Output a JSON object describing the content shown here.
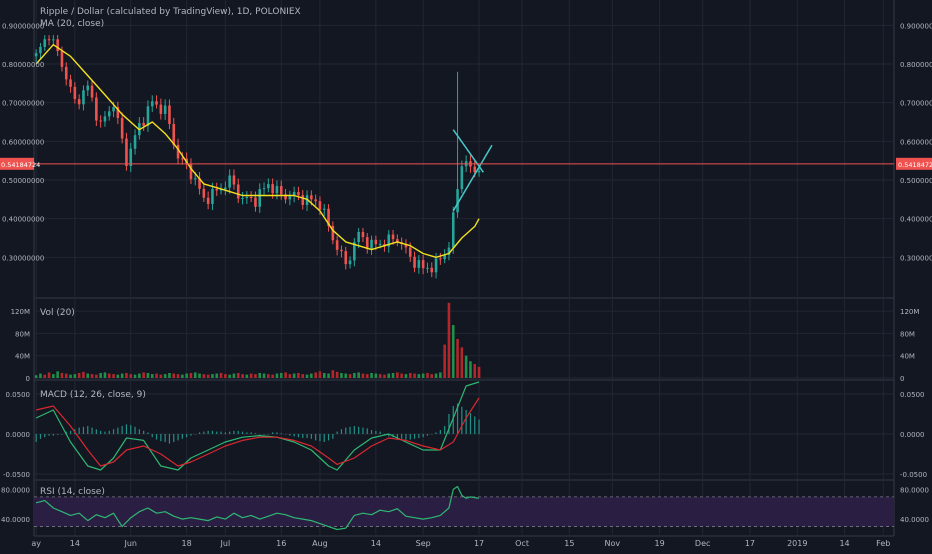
{
  "header": {
    "title": "Ripple / Dollar (calculated by TradingView), 1D, POLONIEX",
    "ma_label": "MA (20, close)"
  },
  "colors": {
    "background": "#131722",
    "grid": "#232733",
    "text": "#b2b5be",
    "up": "#26a69a",
    "down": "#ef5350",
    "vol_up": "#1f8f4a",
    "vol_down": "#b3272b",
    "ma": "#f2e11f",
    "macd": "#2eb872",
    "signal": "#d8282f",
    "rsi": "#2eb872",
    "rsi_band": "#2a1e43",
    "price_line": "#ef5350",
    "trend": "#45c8c8"
  },
  "chart_data": [
    {
      "name": "price",
      "type": "candlestick",
      "y_ticks": [
        "0.90000000",
        "0.80000000",
        "0.70000000",
        "0.60000000",
        "0.50000000",
        "0.40000000",
        "0.30000000"
      ],
      "ylim": [
        0.2,
        0.95
      ],
      "last_price_label": "0.54184724",
      "last_price": 0.54184724,
      "ma_label": "MA (20, close)",
      "close_path": [
        [
          0,
          0.82
        ],
        [
          3,
          0.88
        ],
        [
          6,
          0.8
        ],
        [
          9,
          0.7
        ],
        [
          12,
          0.74
        ],
        [
          15,
          0.64
        ],
        [
          18,
          0.7
        ],
        [
          21,
          0.55
        ],
        [
          24,
          0.64
        ],
        [
          27,
          0.7
        ],
        [
          30,
          0.68
        ],
        [
          33,
          0.56
        ],
        [
          36,
          0.52
        ],
        [
          39,
          0.45
        ],
        [
          42,
          0.47
        ],
        [
          45,
          0.5
        ],
        [
          48,
          0.45
        ],
        [
          51,
          0.45
        ],
        [
          54,
          0.49
        ],
        [
          57,
          0.46
        ],
        [
          60,
          0.46
        ],
        [
          63,
          0.45
        ],
        [
          66,
          0.44
        ],
        [
          69,
          0.35
        ],
        [
          72,
          0.28
        ],
        [
          75,
          0.36
        ],
        [
          78,
          0.33
        ],
        [
          81,
          0.34
        ],
        [
          84,
          0.35
        ],
        [
          87,
          0.3
        ],
        [
          90,
          0.27
        ],
        [
          93,
          0.28
        ],
        [
          96,
          0.33
        ],
        [
          99,
          0.55
        ],
        [
          102,
          0.52
        ],
        [
          103,
          0.54
        ]
      ],
      "ma_points": [
        [
          0,
          0.8
        ],
        [
          4,
          0.85
        ],
        [
          8,
          0.82
        ],
        [
          12,
          0.77
        ],
        [
          16,
          0.72
        ],
        [
          20,
          0.67
        ],
        [
          24,
          0.63
        ],
        [
          27,
          0.65
        ],
        [
          30,
          0.62
        ],
        [
          33,
          0.58
        ],
        [
          36,
          0.53
        ],
        [
          39,
          0.49
        ],
        [
          42,
          0.48
        ],
        [
          45,
          0.47
        ],
        [
          48,
          0.46
        ],
        [
          51,
          0.46
        ],
        [
          54,
          0.46
        ],
        [
          57,
          0.46
        ],
        [
          60,
          0.46
        ],
        [
          63,
          0.45
        ],
        [
          66,
          0.42
        ],
        [
          69,
          0.37
        ],
        [
          72,
          0.34
        ],
        [
          75,
          0.33
        ],
        [
          78,
          0.32
        ],
        [
          81,
          0.33
        ],
        [
          84,
          0.34
        ],
        [
          87,
          0.33
        ],
        [
          90,
          0.31
        ],
        [
          93,
          0.3
        ],
        [
          96,
          0.31
        ],
        [
          99,
          0.35
        ],
        [
          102,
          0.38
        ],
        [
          103,
          0.4
        ]
      ],
      "spike": {
        "day": 98,
        "low": 0.42,
        "high": 0.78
      },
      "trendlines": [
        {
          "from": [
            97,
            0.63
          ],
          "to": [
            104,
            0.52
          ]
        },
        {
          "from": [
            97,
            0.42
          ],
          "to": [
            106,
            0.59
          ]
        }
      ]
    },
    {
      "name": "volume",
      "type": "bar",
      "label": "Vol (20)",
      "y_ticks": [
        "120M",
        "80M",
        "40M",
        "0"
      ],
      "ylim": [
        0,
        140
      ],
      "series": [
        {
          "name": "volume",
          "values": [
            5,
            8,
            6,
            10,
            7,
            12,
            9,
            8,
            6,
            7,
            9,
            11,
            8,
            7,
            6,
            9,
            10,
            8,
            7,
            6,
            8,
            9,
            7,
            6,
            8,
            10,
            9,
            7,
            8,
            6,
            7,
            9,
            8,
            7,
            6,
            8,
            9,
            10,
            8,
            7,
            6,
            7,
            8,
            9,
            7,
            6,
            8,
            9,
            7,
            6,
            8,
            7,
            9,
            8,
            7,
            6,
            8,
            9,
            10,
            7,
            8,
            9,
            7,
            6,
            8,
            10,
            12,
            9,
            8,
            14,
            11,
            9,
            8,
            7,
            9,
            10,
            8,
            7,
            9,
            8,
            7,
            6,
            8,
            9,
            10,
            8,
            7,
            9,
            8,
            7,
            8,
            9,
            7,
            8,
            10,
            60,
            135,
            95,
            70,
            55,
            40,
            30,
            25,
            20
          ]
        }
      ]
    },
    {
      "name": "macd",
      "type": "line",
      "label": "MACD (12, 26, close, 9)",
      "y_ticks": [
        "0.0500",
        "0.0000",
        "-0.0500"
      ],
      "ylim": [
        -0.055,
        0.065
      ],
      "series": [
        {
          "name": "macd",
          "points": [
            [
              0,
              0.02
            ],
            [
              4,
              0.03
            ],
            [
              8,
              -0.01
            ],
            [
              12,
              -0.04
            ],
            [
              15,
              -0.045
            ],
            [
              18,
              -0.03
            ],
            [
              21,
              -0.005
            ],
            [
              25,
              -0.008
            ],
            [
              29,
              -0.04
            ],
            [
              33,
              -0.045
            ],
            [
              36,
              -0.03
            ],
            [
              40,
              -0.02
            ],
            [
              44,
              -0.01
            ],
            [
              48,
              -0.004
            ],
            [
              52,
              -0.002
            ],
            [
              56,
              -0.004
            ],
            [
              60,
              -0.01
            ],
            [
              64,
              -0.02
            ],
            [
              68,
              -0.04
            ],
            [
              70,
              -0.045
            ],
            [
              74,
              -0.02
            ],
            [
              78,
              -0.005
            ],
            [
              82,
              0.0
            ],
            [
              86,
              -0.01
            ],
            [
              90,
              -0.02
            ],
            [
              94,
              -0.02
            ],
            [
              97,
              0.02
            ],
            [
              100,
              0.06
            ],
            [
              103,
              0.065
            ]
          ]
        },
        {
          "name": "signal",
          "points": [
            [
              0,
              0.03
            ],
            [
              4,
              0.035
            ],
            [
              8,
              0.01
            ],
            [
              12,
              -0.02
            ],
            [
              15,
              -0.04
            ],
            [
              18,
              -0.035
            ],
            [
              21,
              -0.02
            ],
            [
              25,
              -0.015
            ],
            [
              29,
              -0.025
            ],
            [
              33,
              -0.04
            ],
            [
              36,
              -0.035
            ],
            [
              40,
              -0.025
            ],
            [
              44,
              -0.015
            ],
            [
              48,
              -0.008
            ],
            [
              52,
              -0.004
            ],
            [
              56,
              -0.004
            ],
            [
              60,
              -0.008
            ],
            [
              64,
              -0.015
            ],
            [
              68,
              -0.03
            ],
            [
              70,
              -0.038
            ],
            [
              74,
              -0.03
            ],
            [
              78,
              -0.015
            ],
            [
              82,
              -0.005
            ],
            [
              86,
              -0.008
            ],
            [
              90,
              -0.015
            ],
            [
              94,
              -0.02
            ],
            [
              97,
              -0.01
            ],
            [
              100,
              0.02
            ],
            [
              103,
              0.045
            ]
          ]
        },
        {
          "name": "histogram",
          "values": [
            -0.01,
            -0.006,
            -0.004,
            -0.002,
            -0.002,
            -0.001,
            0.0,
            0.003,
            0.004,
            0.006,
            0.008,
            0.009,
            0.01,
            0.008,
            0.006,
            0.004,
            0.003,
            0.004,
            0.006,
            0.008,
            0.01,
            0.012,
            0.011,
            0.009,
            0.006,
            0.004,
            0.002,
            -0.004,
            -0.007,
            -0.009,
            -0.01,
            -0.012,
            -0.01,
            -0.008,
            -0.006,
            -0.004,
            -0.002,
            0.0,
            0.002,
            0.003,
            0.004,
            0.004,
            0.003,
            0.003,
            0.002,
            0.003,
            0.004,
            0.004,
            0.003,
            0.002,
            0.002,
            0.001,
            0.0,
            0.0,
            0.0,
            0.002,
            0.002,
            0.001,
            0.0,
            -0.002,
            -0.003,
            -0.004,
            -0.005,
            -0.005,
            -0.006,
            -0.008,
            -0.009,
            -0.01,
            -0.008,
            -0.006,
            0.003,
            0.006,
            0.008,
            0.009,
            0.01,
            0.009,
            0.008,
            0.007,
            0.005,
            0.004,
            0.003,
            0.0,
            -0.003,
            -0.004,
            -0.005,
            -0.006,
            -0.007,
            -0.007,
            -0.006,
            -0.005,
            -0.004,
            -0.002,
            0.0,
            0.002,
            0.005,
            0.01,
            0.025,
            0.035,
            0.038,
            0.034,
            0.03,
            0.026,
            0.022,
            0.018
          ]
        }
      ]
    },
    {
      "name": "rsi",
      "type": "line",
      "label": "RSI (14, close)",
      "y_ticks": [
        "80.0000",
        "40.0000"
      ],
      "ylim": [
        20,
        90
      ],
      "band": [
        30,
        70
      ],
      "series": [
        {
          "name": "rsi",
          "points": [
            [
              0,
              62
            ],
            [
              2,
              65
            ],
            [
              4,
              55
            ],
            [
              6,
              50
            ],
            [
              8,
              45
            ],
            [
              10,
              48
            ],
            [
              12,
              38
            ],
            [
              14,
              46
            ],
            [
              16,
              42
            ],
            [
              18,
              48
            ],
            [
              20,
              30
            ],
            [
              22,
              42
            ],
            [
              24,
              50
            ],
            [
              26,
              55
            ],
            [
              28,
              48
            ],
            [
              30,
              50
            ],
            [
              32,
              44
            ],
            [
              34,
              40
            ],
            [
              36,
              42
            ],
            [
              38,
              40
            ],
            [
              40,
              38
            ],
            [
              42,
              43
            ],
            [
              44,
              40
            ],
            [
              46,
              48
            ],
            [
              48,
              42
            ],
            [
              50,
              45
            ],
            [
              52,
              40
            ],
            [
              54,
              44
            ],
            [
              56,
              48
            ],
            [
              58,
              46
            ],
            [
              60,
              42
            ],
            [
              62,
              40
            ],
            [
              64,
              38
            ],
            [
              66,
              34
            ],
            [
              68,
              30
            ],
            [
              70,
              26
            ],
            [
              72,
              28
            ],
            [
              74,
              45
            ],
            [
              76,
              48
            ],
            [
              78,
              46
            ],
            [
              80,
              52
            ],
            [
              82,
              50
            ],
            [
              84,
              54
            ],
            [
              86,
              44
            ],
            [
              88,
              42
            ],
            [
              90,
              40
            ],
            [
              92,
              42
            ],
            [
              94,
              45
            ],
            [
              96,
              55
            ],
            [
              97,
              80
            ],
            [
              98,
              84
            ],
            [
              99,
              72
            ],
            [
              100,
              68
            ],
            [
              101,
              70
            ],
            [
              103,
              68
            ]
          ]
        }
      ]
    }
  ],
  "x_axis": {
    "ticks": [
      {
        "day": 0,
        "label": "ay"
      },
      {
        "day": 9,
        "label": "14"
      },
      {
        "day": 22,
        "label": "Jun"
      },
      {
        "day": 35,
        "label": "18"
      },
      {
        "day": 44,
        "label": "Jul"
      },
      {
        "day": 57,
        "label": "16"
      },
      {
        "day": 66,
        "label": "Aug"
      },
      {
        "day": 79,
        "label": "14"
      },
      {
        "day": 90,
        "label": "Sep"
      },
      {
        "day": 103,
        "label": "17"
      },
      {
        "day": 113,
        "label": "Oct"
      },
      {
        "day": 124,
        "label": "15"
      },
      {
        "day": 134,
        "label": "Nov"
      },
      {
        "day": 145,
        "label": "19"
      },
      {
        "day": 155,
        "label": "Dec"
      },
      {
        "day": 166,
        "label": "17"
      },
      {
        "day": 177,
        "label": "2019"
      },
      {
        "day": 188,
        "label": "14"
      },
      {
        "day": 197,
        "label": "Feb"
      }
    ]
  }
}
